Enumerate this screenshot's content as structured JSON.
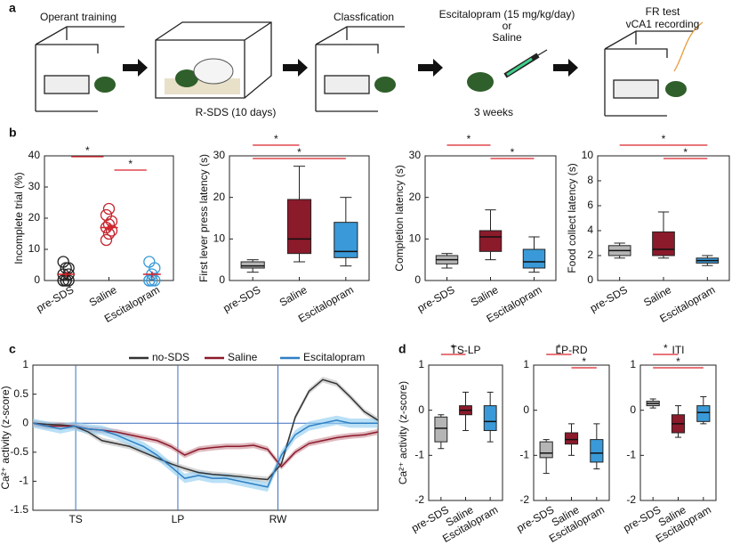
{
  "panel_labels": [
    "a",
    "b",
    "c",
    "d"
  ],
  "panel_a": {
    "step1": "Operant training",
    "step2": "R-SDS (10 days)",
    "step3": "Classfication",
    "step4_drug": "Escitalopram (15 mg/kg/day)",
    "step4_or": "or",
    "step4_saline": "Saline",
    "step4_duration": "3 weeks",
    "step5_line1": "FR test",
    "step5_line2": "vCA1 recording"
  },
  "chart_data": [
    {
      "type": "strip",
      "ylabel": "Incomplete trial (%)",
      "categories": [
        "pre-SDS",
        "Saline",
        "Escitalopram"
      ],
      "colors": [
        "#222222",
        "#c4262e",
        "#3a9ad9"
      ],
      "points": [
        [
          0,
          0,
          0,
          0,
          0,
          2,
          2,
          4,
          4,
          6
        ],
        [
          13,
          15,
          16,
          17,
          18,
          19,
          21,
          23
        ],
        [
          0,
          0,
          0,
          0,
          2,
          4,
          6
        ]
      ],
      "means": [
        2,
        17,
        2
      ],
      "sem": [
        0.8,
        1.2,
        0.9
      ],
      "mean_color": "#d9232a",
      "ylim": [
        0,
        40
      ],
      "yticks": [
        0,
        10,
        20,
        30,
        40
      ],
      "annotations": [
        {
          "pair": [
            0,
            1
          ],
          "text": "*"
        },
        {
          "pair": [
            1,
            2
          ],
          "text": "*"
        }
      ]
    },
    {
      "type": "box",
      "ylabel": "First lever press latency (s)",
      "categories": [
        "pre-SDS",
        "Saline",
        "Escitalopram"
      ],
      "colors": [
        "#b5b5b5",
        "#8b1a2b",
        "#3a9ad9"
      ],
      "boxes": [
        {
          "min": 2,
          "q1": 3,
          "median": 3.5,
          "q3": 4.5,
          "max": 5
        },
        {
          "min": 4.5,
          "q1": 6.5,
          "median": 10,
          "q3": 19.5,
          "max": 27.5
        },
        {
          "min": 3.5,
          "q1": 5.5,
          "median": 7,
          "q3": 14,
          "max": 20
        }
      ],
      "ylim": [
        0,
        30
      ],
      "yticks": [
        0,
        10,
        20,
        30
      ],
      "annotations": [
        {
          "pair": [
            0,
            1
          ],
          "text": "*"
        },
        {
          "pair": [
            0,
            2
          ],
          "text": "*"
        }
      ]
    },
    {
      "type": "box",
      "ylabel": "Completion latency (s)",
      "categories": [
        "pre-SDS",
        "Saline",
        "Escitalopram"
      ],
      "colors": [
        "#b5b5b5",
        "#8b1a2b",
        "#3a9ad9"
      ],
      "boxes": [
        {
          "min": 3,
          "q1": 4,
          "median": 5,
          "q3": 6,
          "max": 6.5
        },
        {
          "min": 5,
          "q1": 7,
          "median": 10.5,
          "q3": 12,
          "max": 17
        },
        {
          "min": 2,
          "q1": 3,
          "median": 4.5,
          "q3": 7.5,
          "max": 10.5
        }
      ],
      "ylim": [
        0,
        30
      ],
      "yticks": [
        0,
        10,
        20,
        30
      ],
      "annotations": [
        {
          "pair": [
            0,
            1
          ],
          "text": "*"
        },
        {
          "pair": [
            1,
            2
          ],
          "text": "*"
        }
      ]
    },
    {
      "type": "box",
      "ylabel": "Food collect latency (s)",
      "categories": [
        "pre-SDS",
        "Saline",
        "Escitalopram"
      ],
      "colors": [
        "#b5b5b5",
        "#8b1a2b",
        "#3a9ad9"
      ],
      "boxes": [
        {
          "min": 1.8,
          "q1": 2,
          "median": 2.4,
          "q3": 2.8,
          "max": 3
        },
        {
          "min": 1.8,
          "q1": 2,
          "median": 2.5,
          "q3": 3.9,
          "max": 5.5
        },
        {
          "min": 1.2,
          "q1": 1.4,
          "median": 1.6,
          "q3": 1.8,
          "max": 2
        }
      ],
      "ylim": [
        0,
        10
      ],
      "yticks": [
        0,
        2,
        4,
        6,
        8,
        10
      ],
      "annotations": [
        {
          "pair": [
            0,
            2
          ],
          "text": "*"
        },
        {
          "pair": [
            1,
            2
          ],
          "text": "*"
        }
      ]
    },
    {
      "type": "line",
      "ylabel": "Ca²⁺ activity (z-score)",
      "x": [
        0,
        4,
        8,
        12,
        16,
        20,
        24,
        28,
        32,
        36,
        40,
        44,
        48,
        52,
        56,
        60,
        64,
        68,
        72,
        76,
        80,
        84,
        88,
        92,
        96,
        100
      ],
      "xlim": [
        0,
        100
      ],
      "xticks": [
        {
          "value": 12.4,
          "label": "TS"
        },
        {
          "value": 42,
          "label": "LP"
        },
        {
          "value": 71,
          "label": "RW"
        }
      ],
      "event_lines": true,
      "zero_line": true,
      "event_color": "#3c6fc0",
      "ylim": [
        -1.5,
        1
      ],
      "yticks": [
        -1.5,
        -1,
        -0.5,
        0,
        0.5,
        1
      ],
      "legend": "top",
      "series": [
        {
          "name": "no-SDS",
          "color": "#333333",
          "band_color": "#bdbdbd",
          "sem": 0.05,
          "values": [
            0,
            -0.02,
            -0.03,
            -0.05,
            -0.15,
            -0.3,
            -0.35,
            -0.4,
            -0.5,
            -0.6,
            -0.7,
            -0.78,
            -0.85,
            -0.88,
            -0.9,
            -0.92,
            -0.95,
            -0.97,
            -0.7,
            0.1,
            0.55,
            0.75,
            0.68,
            0.45,
            0.2,
            0.05
          ]
        },
        {
          "name": "Saline",
          "color": "#8b1a2b",
          "band_color": "#c98a95",
          "sem": 0.05,
          "values": [
            0,
            -0.05,
            -0.05,
            -0.05,
            -0.1,
            -0.12,
            -0.15,
            -0.2,
            -0.25,
            -0.3,
            -0.4,
            -0.55,
            -0.45,
            -0.42,
            -0.4,
            -0.4,
            -0.38,
            -0.45,
            -0.75,
            -0.5,
            -0.35,
            -0.3,
            -0.25,
            -0.22,
            -0.2,
            -0.15
          ]
        },
        {
          "name": "Escitalopram",
          "color": "#2e7fc4",
          "band_color": "#8ccbf0",
          "sem": 0.08,
          "values": [
            0,
            -0.05,
            -0.1,
            -0.05,
            -0.1,
            -0.12,
            -0.2,
            -0.3,
            -0.4,
            -0.55,
            -0.75,
            -0.95,
            -0.9,
            -0.95,
            -0.95,
            -1.0,
            -1.05,
            -1.1,
            -0.55,
            -0.2,
            -0.05,
            0,
            0.05,
            0,
            0,
            0
          ]
        }
      ]
    },
    {
      "type": "box",
      "title": "TS-LP",
      "ylabel": "Ca²⁺ activity (z-score)",
      "categories": [
        "pre-SDS",
        "Saline",
        "Escitalopram"
      ],
      "colors": [
        "#b5b5b5",
        "#8b1a2b",
        "#3a9ad9"
      ],
      "boxes": [
        {
          "min": -0.85,
          "q1": -0.7,
          "median": -0.4,
          "q3": -0.15,
          "max": -0.1
        },
        {
          "min": -0.45,
          "q1": -0.1,
          "median": 0,
          "q3": 0.1,
          "max": 0.4
        },
        {
          "min": -0.7,
          "q1": -0.45,
          "median": -0.25,
          "q3": 0.1,
          "max": 0.4
        }
      ],
      "ylim": [
        -2,
        1
      ],
      "yticks": [
        -2,
        -1,
        0,
        1
      ],
      "annotations": [
        {
          "pair": [
            0,
            1
          ],
          "text": "*"
        }
      ]
    },
    {
      "type": "box",
      "title": "LP-RD",
      "categories": [
        "pre-SDS",
        "Saline",
        "Escitalopram"
      ],
      "colors": [
        "#b5b5b5",
        "#8b1a2b",
        "#3a9ad9"
      ],
      "boxes": [
        {
          "min": -1.4,
          "q1": -1.05,
          "median": -0.95,
          "q3": -0.7,
          "max": -0.65
        },
        {
          "min": -1.0,
          "q1": -0.75,
          "median": -0.65,
          "q3": -0.5,
          "max": -0.3
        },
        {
          "min": -1.3,
          "q1": -1.15,
          "median": -0.95,
          "q3": -0.65,
          "max": -0.3
        }
      ],
      "ylim": [
        -2,
        1
      ],
      "yticks": [
        -2,
        -1,
        0,
        1
      ],
      "annotations": [
        {
          "pair": [
            0,
            1
          ],
          "text": "*"
        },
        {
          "pair": [
            1,
            2
          ],
          "text": "*"
        }
      ]
    },
    {
      "type": "box",
      "title": "ITI",
      "categories": [
        "pre-SDS",
        "Saline",
        "Escitalopram"
      ],
      "colors": [
        "#b5b5b5",
        "#8b1a2b",
        "#3a9ad9"
      ],
      "boxes": [
        {
          "min": 0.05,
          "q1": 0.1,
          "median": 0.15,
          "q3": 0.2,
          "max": 0.25
        },
        {
          "min": -0.6,
          "q1": -0.5,
          "median": -0.3,
          "q3": -0.1,
          "max": 0.1
        },
        {
          "min": -0.3,
          "q1": -0.25,
          "median": -0.05,
          "q3": 0.1,
          "max": 0.3
        }
      ],
      "ylim": [
        -2,
        1
      ],
      "yticks": [
        -2,
        -1,
        0,
        1
      ],
      "annotations": [
        {
          "pair": [
            0,
            1
          ],
          "text": "*"
        },
        {
          "pair": [
            0,
            2
          ],
          "text": "*"
        }
      ]
    }
  ]
}
